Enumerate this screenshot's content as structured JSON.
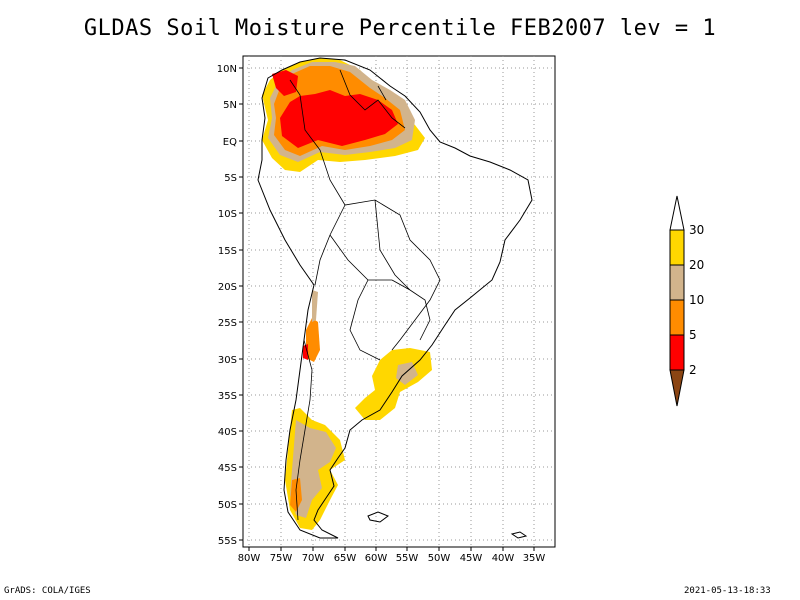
{
  "title": "GLDAS Soil Moisture Percentile FEB2007 lev = 1",
  "footer": {
    "left": "GrADS: COLA/IGES",
    "right": "2021-05-13-18:33"
  },
  "axes": {
    "lon_labels": [
      "80W",
      "75W",
      "70W",
      "65W",
      "60W",
      "55W",
      "50W",
      "45W",
      "40W",
      "35W"
    ],
    "lat_labels": [
      "10N",
      "5N",
      "EQ",
      "5S",
      "10S",
      "15S",
      "20S",
      "25S",
      "30S",
      "35S",
      "40S",
      "45S",
      "50S",
      "55S"
    ]
  },
  "legend": {
    "levels": [
      "2",
      "5",
      "10",
      "20",
      "30"
    ],
    "colors": {
      "lt2": "#8B4513",
      "2_5": "#FF0000",
      "5_10": "#FF8C00",
      "10_20": "#D2B48C",
      "20_30": "#FFD700",
      "gt30": "#FFFFFF"
    }
  }
}
